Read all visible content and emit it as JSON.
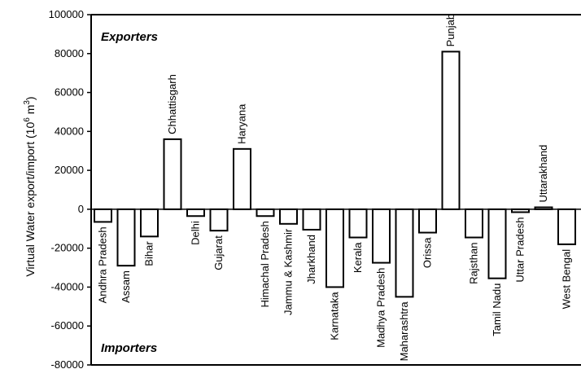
{
  "chart_data": {
    "type": "bar",
    "title": "",
    "xlabel": "",
    "ylabel": {
      "main": "Virtual Water export/import (10",
      "sup": "6",
      "unit": " m",
      "sup2": "3",
      "close": ")"
    },
    "ylim": [
      -80000,
      100000
    ],
    "yticks": [
      -80000,
      -60000,
      -40000,
      -20000,
      0,
      20000,
      40000,
      60000,
      80000,
      100000
    ],
    "grid": false,
    "annotations": {
      "top": "Exporters",
      "bottom": "Importers"
    },
    "categories": [
      "Andhra Pradesh",
      "Assam",
      "Bihar",
      "Chhattisgarh",
      "Delhi",
      "Gujarat",
      "Haryana",
      "Himachal Pradesh",
      "Jammu & Kashmir",
      "Jharkhand",
      "Karnataka",
      "Kerala",
      "Madhya Pradesh",
      "Maharashtra",
      "Orissa",
      "Punjab",
      "Rajsthan",
      "Tamil Nadu",
      "Uttar Pradesh",
      "Uttarakhand",
      "West Bengal"
    ],
    "values": [
      -6500,
      -29000,
      -14000,
      36000,
      -3500,
      -11000,
      31000,
      -3500,
      -7500,
      -10500,
      -40000,
      -14500,
      -27500,
      -45000,
      -12000,
      81000,
      -14500,
      -35500,
      -1500,
      1000,
      -18000
    ],
    "colors": {
      "bar_fill": "#ffffff",
      "bar_stroke": "#000000",
      "axis": "#000000"
    }
  }
}
